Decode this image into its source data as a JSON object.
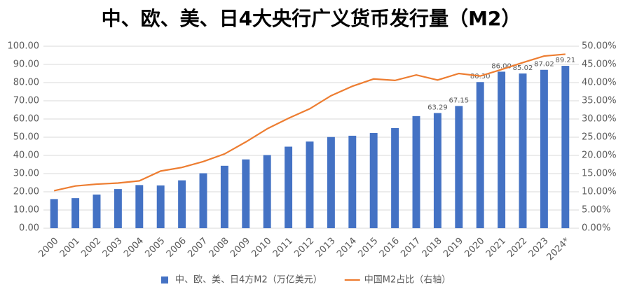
{
  "chart_data": {
    "type": "combo",
    "title": "中、欧、美、日4大央行广义货币发行量（M2）",
    "categories": [
      "2000",
      "2001",
      "2002",
      "2003",
      "2004",
      "2005",
      "2006",
      "2007",
      "2008",
      "2009",
      "2010",
      "2011",
      "2012",
      "2013",
      "2014",
      "2015",
      "2016",
      "2017",
      "2018",
      "2019",
      "2020",
      "2021",
      "2022",
      "2023",
      "2024*"
    ],
    "series": [
      {
        "name": "中、欧、美、日4方M2（万亿美元）",
        "type": "bar",
        "color": "#4472c4",
        "values": [
          16.0,
          16.5,
          18.5,
          21.5,
          23.7,
          23.5,
          26.3,
          30.2,
          34.3,
          37.8,
          40.2,
          44.8,
          47.6,
          50.1,
          50.8,
          52.3,
          55.0,
          61.6,
          63.29,
          67.15,
          80.3,
          86.0,
          85.02,
          87.02,
          89.21
        ],
        "value_labels": [
          null,
          null,
          null,
          null,
          null,
          null,
          null,
          null,
          null,
          null,
          null,
          null,
          null,
          null,
          null,
          null,
          null,
          null,
          "63.29",
          "67.15",
          "80.30",
          "86.00",
          "85.02",
          "87.02",
          "89.21"
        ]
      },
      {
        "name": "中国M2占比（右轴）",
        "type": "line",
        "color": "#ed7d31",
        "axis": "y2",
        "values": [
          10.3,
          11.6,
          12.1,
          12.4,
          13.0,
          15.7,
          16.7,
          18.3,
          20.4,
          23.7,
          27.3,
          30.2,
          32.8,
          36.4,
          39.0,
          41.0,
          40.6,
          42.1,
          40.7,
          42.5,
          41.8,
          43.6,
          45.5,
          47.3,
          47.8
        ]
      }
    ],
    "ylim": [
      0,
      100
    ],
    "yticks": [
      {
        "value": 0,
        "label": "0.00"
      },
      {
        "value": 10,
        "label": "10.00"
      },
      {
        "value": 20,
        "label": "20.00"
      },
      {
        "value": 30,
        "label": "30.00"
      },
      {
        "value": 40,
        "label": "40.00"
      },
      {
        "value": 50,
        "label": "50.00"
      },
      {
        "value": 60,
        "label": "60.00"
      },
      {
        "value": 70,
        "label": "70.00"
      },
      {
        "value": 80,
        "label": "80.00"
      },
      {
        "value": 90,
        "label": "90.00"
      },
      {
        "value": 100,
        "label": "100.00"
      }
    ],
    "y2lim": [
      0,
      50
    ],
    "y2ticks": [
      {
        "value": 0,
        "label": "0.00%"
      },
      {
        "value": 5,
        "label": "5.00%"
      },
      {
        "value": 10,
        "label": "10.00%"
      },
      {
        "value": 15,
        "label": "15.00%"
      },
      {
        "value": 20,
        "label": "20.00%"
      },
      {
        "value": 25,
        "label": "25.00%"
      },
      {
        "value": 30,
        "label": "30.00%"
      },
      {
        "value": 35,
        "label": "35.00%"
      },
      {
        "value": 40,
        "label": "40.00%"
      },
      {
        "value": 45,
        "label": "45.00%"
      },
      {
        "value": 50,
        "label": "50.00%"
      }
    ],
    "grid": true,
    "legend": "bottom"
  }
}
